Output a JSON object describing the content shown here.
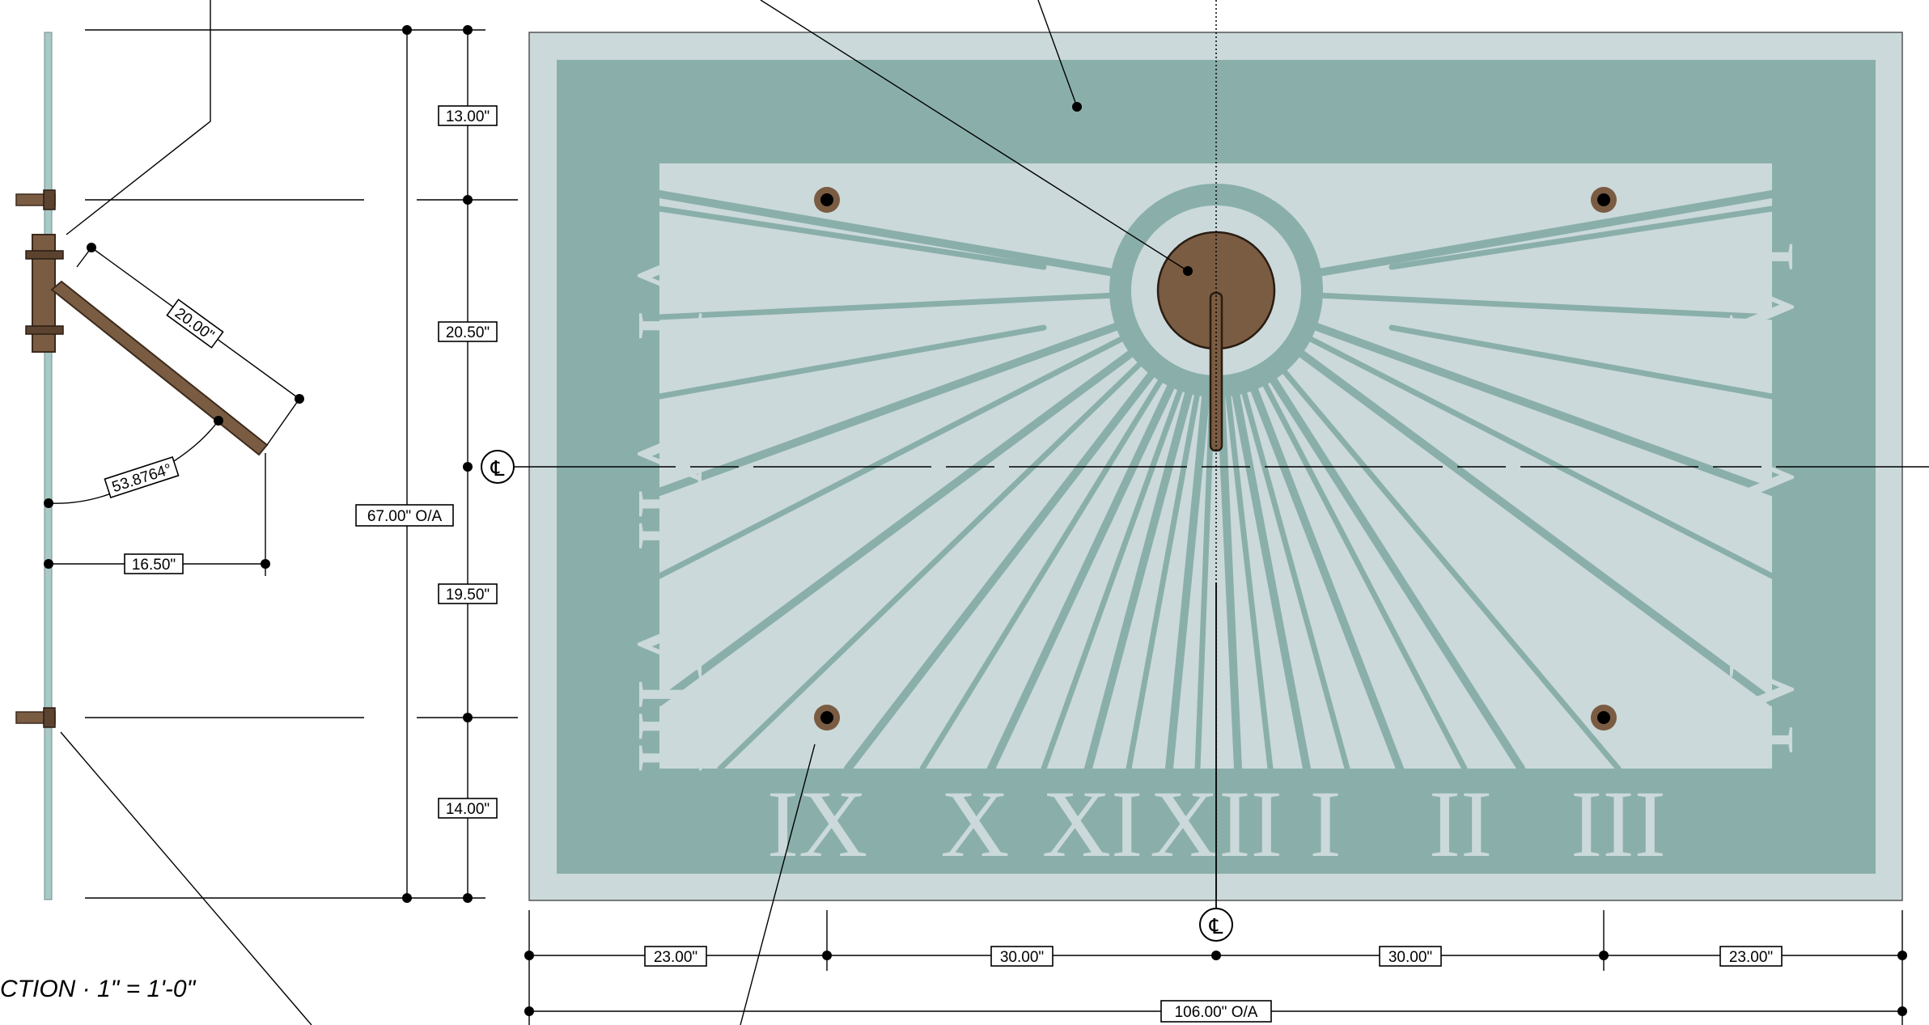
{
  "section_label": "CTION · 1\" = 1'-0\"",
  "centerline_symbol": "℄",
  "colors": {
    "face_light": "#cbd9da",
    "face_teal": "#8aafab",
    "bronze": "#7a5c43",
    "bronze_dark": "#3d2a1c",
    "glass": "#a9c9c6"
  },
  "section_view": {
    "gnomon_length": "20.00\"",
    "gnomon_angle": "53.8764°",
    "projection": "16.50\""
  },
  "vertical_dims": {
    "top_margin": "13.00\"",
    "upper": "20.50\"",
    "lower": "19.50\"",
    "bottom_margin": "14.00\"",
    "overall": "67.00\" O/A"
  },
  "horizontal_dims": {
    "left_margin": "23.00\"",
    "left_inner": "30.00\"",
    "right_inner": "30.00\"",
    "right_margin": "23.00\"",
    "overall": "106.00\" O/A"
  },
  "numerals": {
    "left": [
      "VI",
      "VII",
      "VIII"
    ],
    "bottom": [
      "IX",
      "X",
      "XI",
      "XII",
      "I",
      "II",
      "III"
    ],
    "right": [
      "VI",
      "V",
      "IV"
    ]
  },
  "fasteners": [
    "fastener",
    "fastener",
    "fastener",
    "fastener"
  ]
}
